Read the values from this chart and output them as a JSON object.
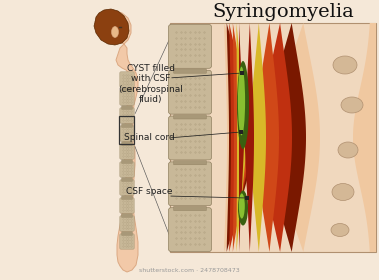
{
  "title": "Syringomyelia",
  "title_fontsize": 14,
  "title_font": "DejaVu Serif",
  "labels": {
    "cyst": "CYST filled\nwith CSF\n(cerebrospinal\nfluid)",
    "spinal_cord": "Spinal cord",
    "csf_space": "CSF space"
  },
  "label_fontsize": 6.5,
  "colors": {
    "bg": "#f5e8d8",
    "skin_fill": "#f2c9a8",
    "skin_edge": "#dba882",
    "skin_shadow": "#e8b888",
    "hair": "#8B4010",
    "spine_vert": "#c8b898",
    "spine_disc": "#a89878",
    "spine_edge": "#908060",
    "diagram_bg": "#f0d8be",
    "cord_skin_right": "#f0c8a0",
    "cord_dark_red": "#7a1800",
    "cord_red": "#c03010",
    "cord_orange": "#d04818",
    "cord_yellow": "#d8b828",
    "cord_inner_red": "#981808",
    "cyst_dark": "#3a6010",
    "cyst_light": "#88c030",
    "nerve_fill": "#d4b896",
    "nerve_edge": "#b09070",
    "annotation": "#222222",
    "box_edge": "#333333",
    "watermark": "#999999"
  }
}
